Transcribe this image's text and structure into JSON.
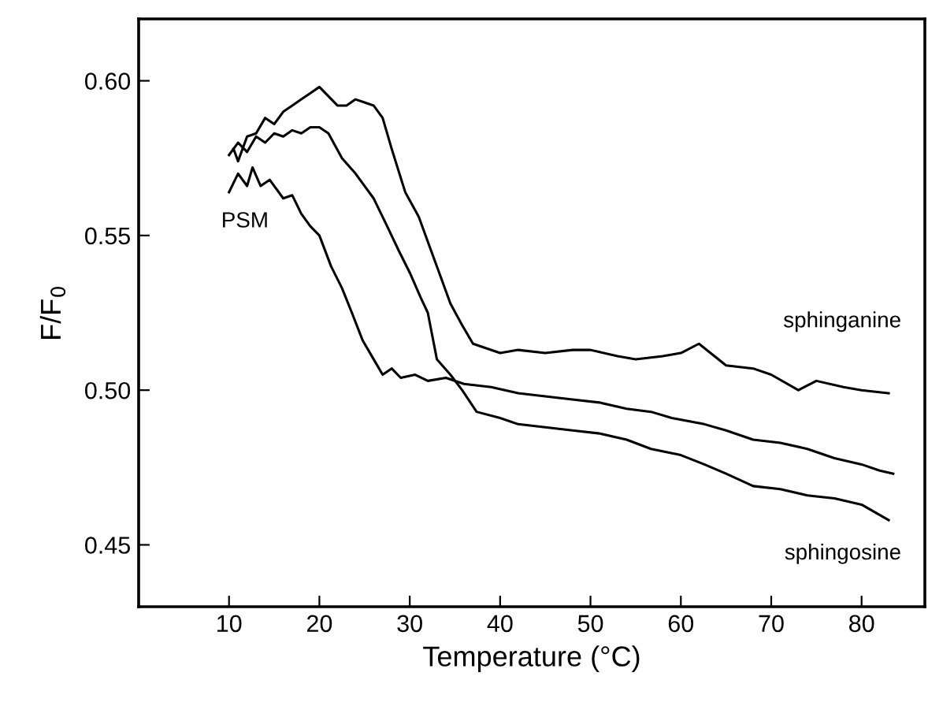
{
  "chart_data": {
    "type": "line",
    "xlabel": "Temperature (°C)",
    "ylabel": "F/F$_{0}$",
    "xlim": [
      0,
      87
    ],
    "ylim": [
      0.43,
      0.62
    ],
    "xticks": [
      10,
      20,
      30,
      40,
      50,
      60,
      70,
      80
    ],
    "yticks": [
      {
        "value": 0.45,
        "label": "0.45"
      },
      {
        "value": 0.5,
        "label": "0.50"
      },
      {
        "value": 0.55,
        "label": "0.55"
      },
      {
        "value": 0.6,
        "label": "0.60"
      }
    ],
    "grid": false,
    "marker": "none",
    "line_style": "solid",
    "series": [
      {
        "name": "PSM",
        "color": "#000000",
        "x": [
          10,
          11,
          12,
          12.6,
          13.5,
          14.5,
          16,
          17,
          18,
          19,
          20,
          21.3,
          22.5,
          23.6,
          24.8,
          26,
          27,
          28,
          29,
          30.6,
          32,
          34,
          36,
          39,
          42,
          45,
          48,
          51,
          54,
          56.7,
          59,
          62.6,
          65,
          68,
          71,
          74,
          77,
          80,
          82,
          83.5
        ],
        "values": [
          0.564,
          0.57,
          0.566,
          0.572,
          0.566,
          0.568,
          0.562,
          0.563,
          0.557,
          0.553,
          0.55,
          0.54,
          0.533,
          0.525,
          0.516,
          0.51,
          0.505,
          0.507,
          0.504,
          0.505,
          0.503,
          0.504,
          0.502,
          0.501,
          0.499,
          0.498,
          0.497,
          0.496,
          0.494,
          0.493,
          0.491,
          0.489,
          0.487,
          0.484,
          0.483,
          0.481,
          0.478,
          0.476,
          0.474,
          0.473
        ]
      },
      {
        "name": "sphingosine",
        "color": "#000000",
        "x": [
          10,
          11,
          12,
          13,
          14,
          15,
          16,
          17,
          18,
          19,
          20,
          21,
          22.5,
          24,
          26,
          27.5,
          28.8,
          30,
          31.2,
          32,
          33,
          34.5,
          35.8,
          37.4,
          40,
          42,
          45,
          48,
          51,
          54,
          56.7,
          60,
          62.6,
          65,
          68,
          71,
          74,
          77,
          80,
          83
        ],
        "values": [
          0.576,
          0.58,
          0.577,
          0.582,
          0.58,
          0.583,
          0.582,
          0.584,
          0.583,
          0.585,
          0.585,
          0.583,
          0.575,
          0.57,
          0.562,
          0.553,
          0.545,
          0.538,
          0.53,
          0.525,
          0.51,
          0.505,
          0.5,
          0.493,
          0.491,
          0.489,
          0.488,
          0.487,
          0.486,
          0.484,
          0.481,
          0.479,
          0.476,
          0.473,
          0.469,
          0.468,
          0.466,
          0.465,
          0.463,
          0.458
        ]
      },
      {
        "name": "sphinganine",
        "color": "#000000",
        "x": [
          10.5,
          11,
          12,
          13,
          14,
          15,
          16,
          17,
          18,
          19,
          20,
          21,
          22,
          23,
          24,
          25,
          26,
          27,
          28,
          29.5,
          31,
          32,
          33.5,
          34.5,
          35.8,
          37,
          40,
          42,
          45,
          48,
          50,
          53,
          55,
          58,
          60,
          62,
          65,
          68,
          70,
          73,
          75,
          78,
          80,
          83
        ],
        "values": [
          0.578,
          0.574,
          0.582,
          0.583,
          0.588,
          0.586,
          0.59,
          0.592,
          0.594,
          0.596,
          0.598,
          0.595,
          0.592,
          0.592,
          0.594,
          0.593,
          0.592,
          0.588,
          0.578,
          0.564,
          0.556,
          0.548,
          0.536,
          0.528,
          0.521,
          0.515,
          0.512,
          0.513,
          0.512,
          0.513,
          0.513,
          0.511,
          0.51,
          0.511,
          0.512,
          0.515,
          0.508,
          0.507,
          0.505,
          0.5,
          0.503,
          0.501,
          0.5,
          0.499
        ]
      }
    ]
  }
}
